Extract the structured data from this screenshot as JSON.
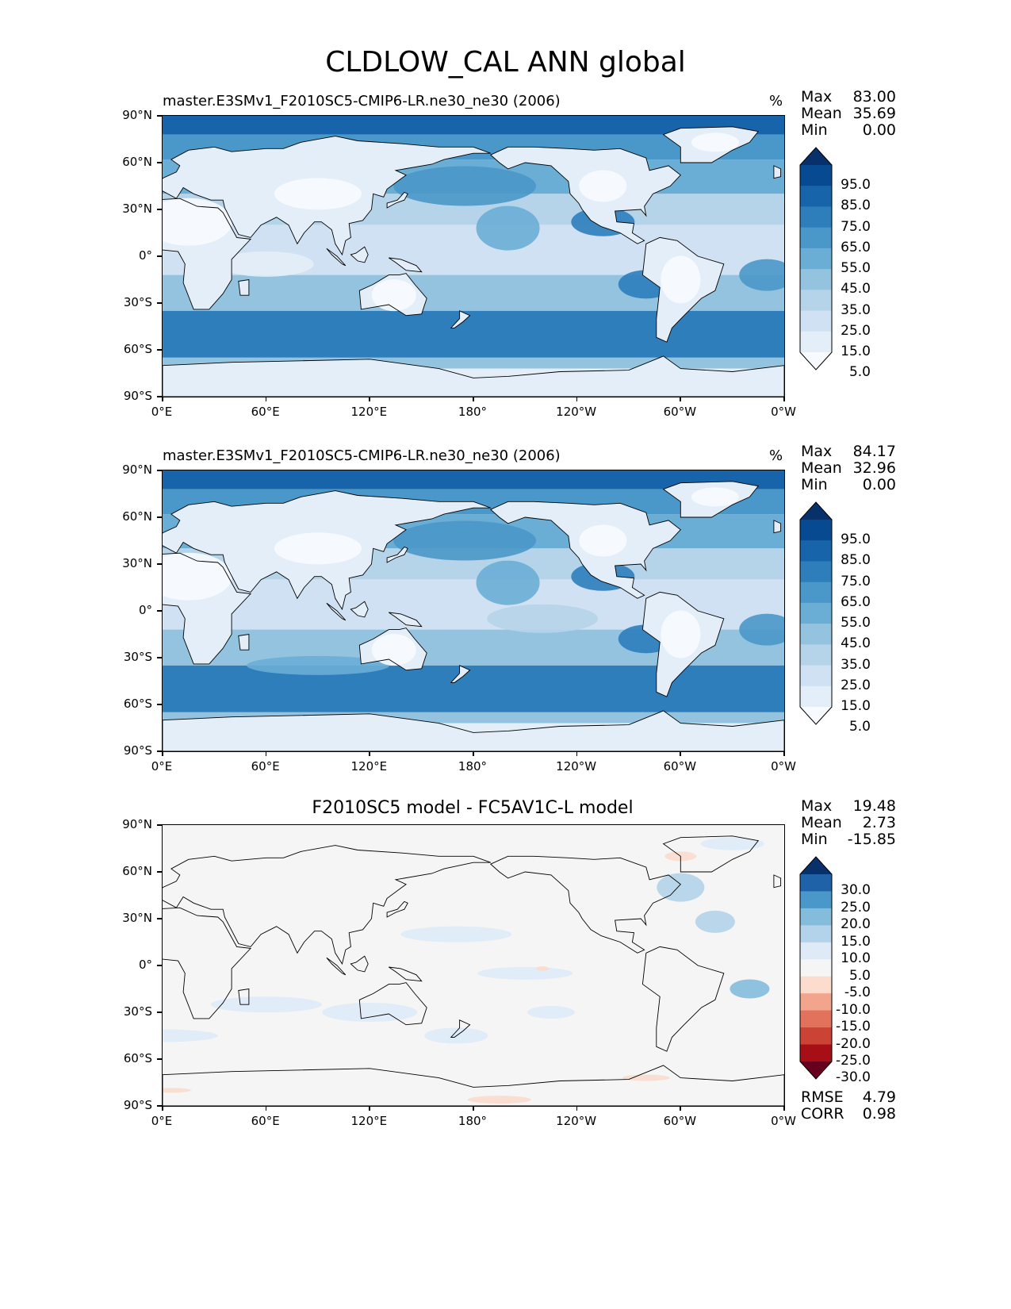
{
  "figure": {
    "title": "CLDLOW_CAL ANN global"
  },
  "colors": {
    "blues": [
      "#f7fbff",
      "#e3eef8",
      "#cfe1f2",
      "#b5d4e9",
      "#93c3df",
      "#6aaed6",
      "#4a98c9",
      "#2e7ebc",
      "#1764ab",
      "#084a91",
      "#08306b"
    ],
    "diverging": [
      "#67001f",
      "#a50f15",
      "#cb4335",
      "#e2725b",
      "#f2a48c",
      "#fbdccd",
      "#f5f5f5",
      "#deebf7",
      "#b3d3ea",
      "#84bcdb",
      "#4a98c9",
      "#1f62a8",
      "#08306b"
    ],
    "coast": "#000000"
  },
  "chart_data": [
    {
      "type": "heatmap",
      "panel": "test",
      "title": "master.E3SMv1_F2010SC5-CMIP6-LR.ne30_ne30 (2006)",
      "units": "%",
      "stats": {
        "max": "83.00",
        "mean": "35.69",
        "min": "0.00"
      },
      "x_ticks": [
        "0°E",
        "60°E",
        "120°E",
        "180°",
        "120°W",
        "60°W",
        "0°W"
      ],
      "y_ticks": [
        "90°N",
        "60°N",
        "30°N",
        "0°",
        "30°S",
        "60°S",
        "90°S"
      ],
      "xlim": [
        0,
        360
      ],
      "ylim": [
        -90,
        90
      ],
      "colorbar_levels": [
        "95.0",
        "85.0",
        "75.0",
        "65.0",
        "55.0",
        "45.0",
        "35.0",
        "25.0",
        "15.0",
        "5.0"
      ],
      "colorbar": "blues"
    },
    {
      "type": "heatmap",
      "panel": "reference",
      "title": "master.E3SMv1_F2010SC5-CMIP6-LR.ne30_ne30 (2006)",
      "units": "%",
      "stats": {
        "max": "84.17",
        "mean": "32.96",
        "min": "0.00"
      },
      "x_ticks": [
        "0°E",
        "60°E",
        "120°E",
        "180°",
        "120°W",
        "60°W",
        "0°W"
      ],
      "y_ticks": [
        "90°N",
        "60°N",
        "30°N",
        "0°",
        "30°S",
        "60°S",
        "90°S"
      ],
      "xlim": [
        0,
        360
      ],
      "ylim": [
        -90,
        90
      ],
      "colorbar_levels": [
        "95.0",
        "85.0",
        "75.0",
        "65.0",
        "55.0",
        "45.0",
        "35.0",
        "25.0",
        "15.0",
        "5.0"
      ],
      "colorbar": "blues"
    },
    {
      "type": "heatmap",
      "panel": "difference",
      "title": "F2010SC5 model - FC5AV1C-L model",
      "units": "",
      "stats": {
        "max": "19.48",
        "mean": "2.73",
        "min": "-15.85"
      },
      "metrics": {
        "rmse": "4.79",
        "corr": "0.98"
      },
      "x_ticks": [
        "0°E",
        "60°E",
        "120°E",
        "180°",
        "120°W",
        "60°W",
        "0°W"
      ],
      "y_ticks": [
        "90°N",
        "60°N",
        "30°N",
        "0°",
        "30°S",
        "60°S",
        "90°S"
      ],
      "xlim": [
        0,
        360
      ],
      "ylim": [
        -90,
        90
      ],
      "colorbar_levels": [
        "30.0",
        "25.0",
        "20.0",
        "15.0",
        "10.0",
        "5.0",
        "-5.0",
        "-10.0",
        "-15.0",
        "-20.0",
        "-25.0",
        "-30.0"
      ],
      "colorbar": "diverging"
    }
  ],
  "labels": {
    "max": "Max",
    "mean": "Mean",
    "min": "Min",
    "rmse": "RMSE",
    "corr": "CORR"
  }
}
